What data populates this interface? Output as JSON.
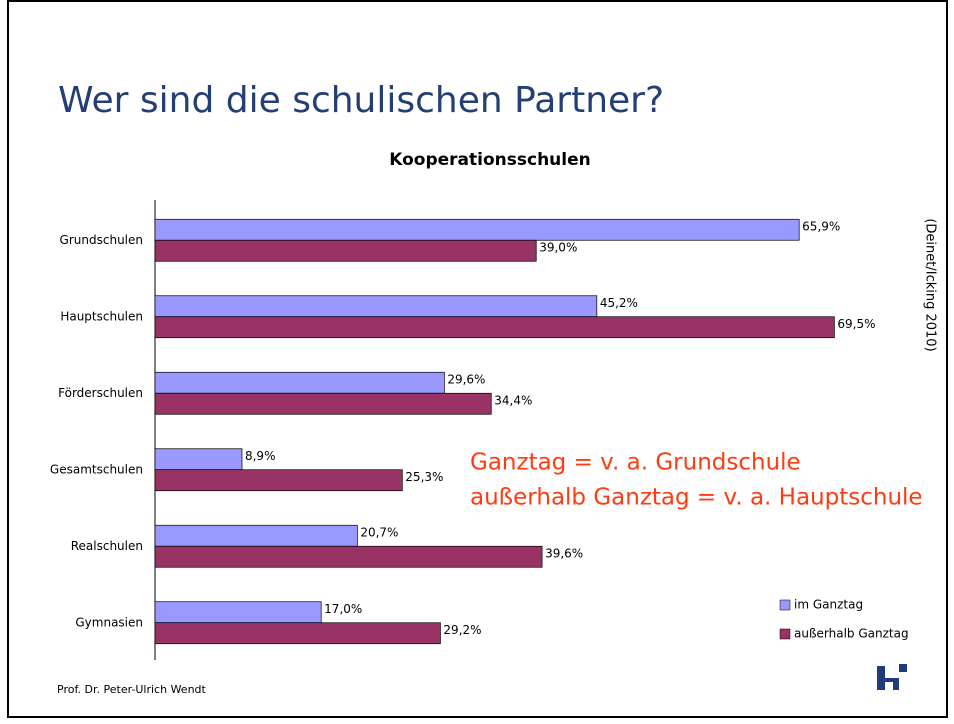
{
  "title": "Wer sind die schulischen Partner?",
  "source": "(Deinet/Icking 2010)",
  "annotations": [
    "Ganztag = v. a. Grundschule",
    "außerhalb Ganztag = v. a. Hauptschule"
  ],
  "footer": "Prof. Dr. Peter-Ulrich Wendt",
  "chart_data": {
    "type": "hbar",
    "title": "Kooperationsschulen",
    "categories": [
      "Grundschulen",
      "Hauptschulen",
      "Förderschulen",
      "Gesamtschulen",
      "Realschulen",
      "Gymnasien"
    ],
    "series": [
      {
        "name": "im Ganztag",
        "color": "#9999ff",
        "values": [
          65.9,
          45.2,
          29.6,
          8.9,
          20.7,
          17.0
        ],
        "value_labels": [
          "65,9%",
          "45,2%",
          "29,6%",
          "8,9%",
          "20,7%",
          "17,0%"
        ]
      },
      {
        "name": "außerhalb Ganztag",
        "color": "#993366",
        "values": [
          39.0,
          69.5,
          34.4,
          25.3,
          39.6,
          29.2
        ],
        "value_labels": [
          "39,0%",
          "69,5%",
          "34,4%",
          "25,3%",
          "39,6%",
          "29,2%"
        ]
      }
    ],
    "xlim": [
      0,
      80
    ],
    "legend": "lower right"
  }
}
